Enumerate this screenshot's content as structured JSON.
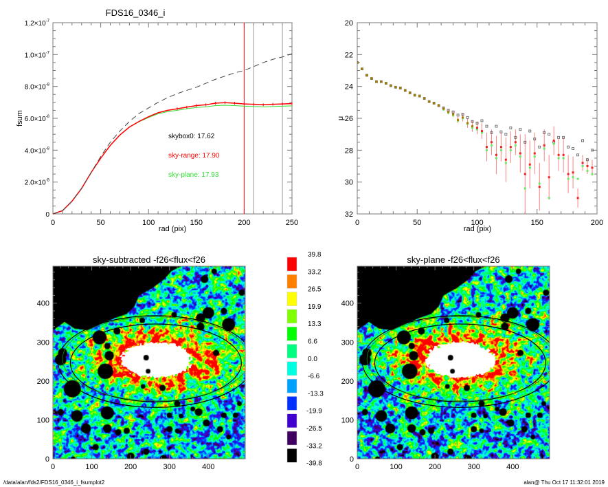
{
  "footer": {
    "left": "/data/alan/fds2/FDS16_0346_i_fsumplot2",
    "right": "alan@  Thu Oct 17 11:32:01 2019"
  },
  "colors": {
    "skybox0": "#555555",
    "sky_range": "#ff0000",
    "sky_plane": "#33dd33",
    "marker_lines": [
      "#ff0000",
      "#999999",
      "#999999"
    ]
  },
  "chart_data": [
    {
      "type": "line",
      "title": "FDS16_0346_i",
      "xlabel": "rad (pix)",
      "ylabel": "fsum",
      "xlim": [
        0,
        250
      ],
      "ylim": [
        0,
        1.2e-07
      ],
      "xticks": [
        "0",
        "50",
        "100",
        "150",
        "200",
        "250"
      ],
      "yticks": [
        {
          "v": 0,
          "m": "0",
          "e": ""
        },
        {
          "v": 2e-08,
          "m": "2.0×10",
          "e": "-8"
        },
        {
          "v": 4e-08,
          "m": "4.0×10",
          "e": "-8"
        },
        {
          "v": 6e-08,
          "m": "6.0×10",
          "e": "-8"
        },
        {
          "v": 8e-08,
          "m": "8.0×10",
          "e": "-8"
        },
        {
          "v": 1e-07,
          "m": "1.0×10",
          "e": "-7"
        },
        {
          "v": 1.2e-07,
          "m": "1.2×10",
          "e": "-7"
        }
      ],
      "x": [
        0,
        10,
        20,
        30,
        40,
        50,
        60,
        70,
        80,
        90,
        100,
        110,
        120,
        130,
        140,
        150,
        160,
        170,
        180,
        190,
        200,
        210,
        220,
        230,
        240,
        250
      ],
      "series": [
        {
          "key": "skybox0",
          "style": "dashed",
          "values": [
            0,
            2e-09,
            8e-09,
            1.6e-08,
            2.6e-08,
            3.6e-08,
            4.5e-08,
            5.2e-08,
            5.8e-08,
            6.3e-08,
            6.65e-08,
            7e-08,
            7.3e-08,
            7.55e-08,
            7.75e-08,
            7.95e-08,
            8.2e-08,
            8.45e-08,
            8.65e-08,
            8.85e-08,
            9e-08,
            9.25e-08,
            9.5e-08,
            9.7e-08,
            9.85e-08,
            1.005e-07
          ]
        },
        {
          "key": "sky_range",
          "style": "solid",
          "values": [
            0,
            2e-09,
            8e-09,
            1.6e-08,
            2.6e-08,
            3.5e-08,
            4.3e-08,
            4.95e-08,
            5.45e-08,
            5.8e-08,
            6.1e-08,
            6.35e-08,
            6.5e-08,
            6.6e-08,
            6.7e-08,
            6.8e-08,
            6.85e-08,
            6.95e-08,
            6.98e-08,
            6.95e-08,
            6.9e-08,
            6.88e-08,
            6.85e-08,
            6.88e-08,
            6.9e-08,
            6.92e-08
          ]
        },
        {
          "key": "sky_plane",
          "style": "solid",
          "values": [
            0,
            2e-09,
            8e-09,
            1.6e-08,
            2.6e-08,
            3.5e-08,
            4.3e-08,
            4.95e-08,
            5.45e-08,
            5.78e-08,
            6.05e-08,
            6.28e-08,
            6.42e-08,
            6.5e-08,
            6.6e-08,
            6.68e-08,
            6.72e-08,
            6.8e-08,
            6.82e-08,
            6.8e-08,
            6.76e-08,
            6.74e-08,
            6.72e-08,
            6.74e-08,
            6.76e-08,
            6.78e-08
          ]
        }
      ],
      "vlines": [
        200,
        210,
        240
      ],
      "annotations": [
        {
          "key": "skybox0",
          "text": "skybox0: 17.62"
        },
        {
          "key": "sky_range",
          "text": "sky-range: 17.90"
        },
        {
          "key": "sky_plane",
          "text": "sky-plane: 17.93"
        }
      ]
    },
    {
      "type": "scatter",
      "title": "",
      "xlabel": "rad (pix)",
      "ylabel": "μ",
      "xlim": [
        0,
        200
      ],
      "ylim": [
        32,
        20
      ],
      "y_inverted": true,
      "xticks": [
        "0",
        "50",
        "100",
        "150",
        "200"
      ],
      "yticks": [
        "20",
        "22",
        "24",
        "26",
        "28",
        "30",
        "32"
      ],
      "x": [
        0,
        4,
        8,
        12,
        16,
        20,
        24,
        28,
        32,
        36,
        40,
        44,
        48,
        52,
        56,
        60,
        64,
        68,
        72,
        76,
        80,
        84,
        88,
        92,
        96,
        100,
        104,
        108,
        112,
        116,
        120,
        124,
        128,
        132,
        136,
        140,
        144,
        148,
        152,
        156,
        160,
        164,
        168,
        172,
        176,
        180,
        184,
        188,
        192,
        196
      ],
      "series": [
        {
          "key": "skybox0",
          "marker": "open-square",
          "values": [
            22.5,
            22.9,
            23.3,
            23.5,
            23.7,
            23.7,
            23.8,
            23.95,
            24.05,
            24.1,
            24.25,
            24.4,
            24.55,
            24.6,
            24.75,
            24.95,
            25.05,
            25.2,
            25.35,
            25.5,
            25.6,
            25.8,
            25.75,
            25.95,
            26.2,
            26.3,
            26.15,
            26.5,
            26.9,
            26.5,
            26.85,
            27.0,
            26.6,
            27.2,
            26.7,
            27.5,
            26.8,
            27.3,
            27.8,
            26.9,
            27.0,
            27.5,
            27.2,
            27.2,
            27.8,
            27.9,
            28.3,
            27.4,
            28.6,
            28.0
          ]
        },
        {
          "key": "sky_range",
          "marker": "filled-square",
          "values": [
            22.5,
            22.9,
            23.3,
            23.5,
            23.7,
            23.7,
            23.8,
            23.95,
            24.05,
            24.1,
            24.25,
            24.4,
            24.55,
            24.6,
            24.75,
            24.95,
            25.05,
            25.2,
            25.4,
            25.6,
            25.75,
            26.1,
            25.95,
            26.3,
            26.5,
            26.6,
            26.8,
            27.8,
            27.5,
            28.3,
            27.8,
            28.6,
            27.8,
            27.5,
            28.2,
            29.5,
            28.9,
            28.2,
            30.3,
            27.7,
            29.7,
            27.4,
            28.3,
            28.3,
            29.5,
            29.4,
            31.0,
            28.8,
            29.0,
            29.1
          ],
          "err": [
            0.05,
            0.05,
            0.05,
            0.05,
            0.05,
            0.05,
            0.05,
            0.05,
            0.05,
            0.05,
            0.05,
            0.05,
            0.06,
            0.06,
            0.07,
            0.08,
            0.08,
            0.1,
            0.12,
            0.15,
            0.18,
            0.2,
            0.25,
            0.3,
            0.35,
            0.4,
            0.5,
            0.9,
            0.8,
            1.2,
            0.9,
            1.4,
            1.0,
            0.8,
            1.2,
            2.5,
            1.5,
            1.3,
            1.5,
            1.0,
            1.4,
            0.9,
            1.0,
            1.1,
            1.2,
            1.0,
            0.6,
            0.5,
            0.5,
            0.5
          ]
        },
        {
          "key": "sky_plane",
          "marker": "filled-square",
          "values": [
            22.5,
            22.9,
            23.3,
            23.5,
            23.7,
            23.7,
            23.8,
            23.95,
            24.05,
            24.1,
            24.25,
            24.4,
            24.55,
            24.6,
            24.75,
            24.95,
            25.05,
            25.2,
            25.45,
            25.65,
            25.8,
            26.15,
            26.0,
            26.35,
            26.6,
            26.7,
            26.9,
            28.0,
            27.7,
            28.5,
            28.0,
            28.8,
            28.0,
            27.7,
            28.4,
            30.4,
            29.1,
            28.4,
            30.1,
            27.9,
            31.0,
            27.6,
            28.5,
            28.5,
            29.8,
            29.7,
            29.8,
            29.0,
            29.3,
            29.5
          ]
        }
      ]
    },
    {
      "type": "heatmap",
      "title": "sky-subtracted -f26<flux<f26",
      "xlim": [
        0,
        495
      ],
      "ylim": [
        0,
        495
      ],
      "xticks": [
        "0",
        "100",
        "200",
        "300",
        "400"
      ],
      "yticks": [
        "0",
        "100",
        "200",
        "300",
        "400"
      ]
    },
    {
      "type": "heatmap",
      "title": "sky-plane -f26<flux<f26",
      "xlim": [
        0,
        495
      ],
      "ylim": [
        0,
        495
      ],
      "xticks": [
        "0",
        "100",
        "200",
        "300",
        "400"
      ],
      "yticks": [
        "0",
        "100",
        "200",
        "300",
        "400"
      ]
    }
  ],
  "colorbar": {
    "labels": [
      "39.8",
      "33.2",
      "26.5",
      "19.9",
      "13.3",
      "6.6",
      "0.0",
      "-6.6",
      "-13.3",
      "-19.9",
      "-26.5",
      "-33.2",
      "-39.8"
    ],
    "colors": [
      "#ff0000",
      "#ff8000",
      "#ffff00",
      "#80ff00",
      "#00ff00",
      "#00ff80",
      "#00ffe0",
      "#00a0ff",
      "#0030ff",
      "#4000d0",
      "#400060",
      "#000000"
    ]
  }
}
